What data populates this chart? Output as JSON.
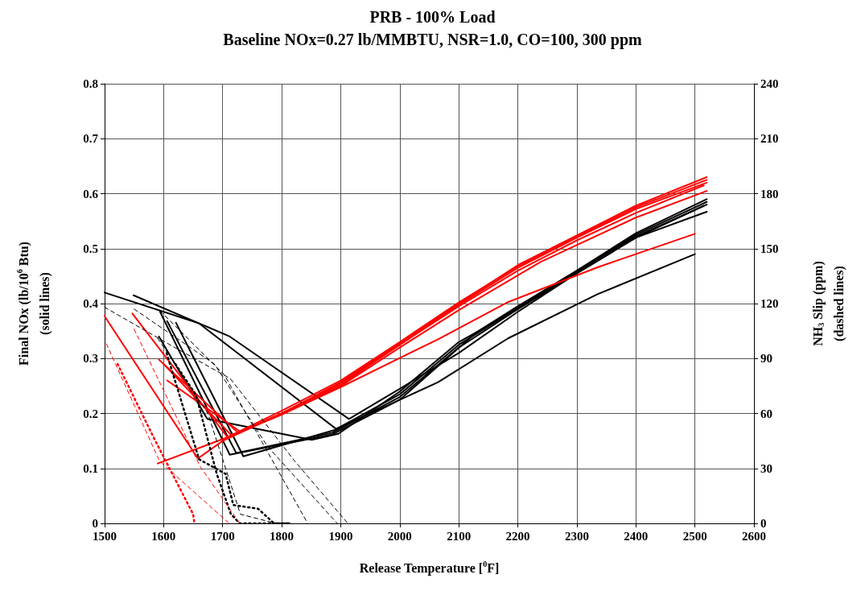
{
  "chart_data": {
    "type": "line",
    "title": "PRB - 100% Load",
    "subtitle": "Baseline NOx=0.27 lb/MMBTU, NSR=1.0, CO=100, 300 ppm",
    "xlabel": "Release Temperature [$^{0}$F]",
    "ylabel": "Final NOx (lb/10$^{6}$ Btu)\n(solid lines)",
    "y2label": "NH$_{3}$ Slip (ppm)\n(dashed lines)",
    "xlim": [
      1500,
      2600
    ],
    "xticks": [
      1500,
      1600,
      1700,
      1800,
      1900,
      2000,
      2100,
      2200,
      2300,
      2400,
      2500,
      2600
    ],
    "ylim": [
      0,
      0.8
    ],
    "yticks": [
      0,
      0.1,
      0.2,
      0.3,
      0.4,
      0.5,
      0.6,
      0.7,
      0.8
    ],
    "y2lim": [
      0,
      240
    ],
    "y2ticks": [
      0,
      30,
      60,
      90,
      120,
      150,
      180,
      210,
      240
    ],
    "grid": true,
    "marker": "none",
    "line_style": "solid",
    "series": [
      {
        "color": "#000000",
        "x": [
          1500,
          1660,
          1712,
          1914,
          2000,
          2100,
          2200,
          2300,
          2400,
          2520
        ],
        "values": [
          0.42,
          0.364,
          0.34,
          0.19,
          0.245,
          0.31,
          0.385,
          0.455,
          0.52,
          0.567
        ]
      },
      {
        "color": "#000000",
        "x": [
          1549,
          1660,
          1892,
          1960,
          2065,
          2184,
          2335,
          2500
        ],
        "values": [
          0.415,
          0.364,
          0.172,
          0.205,
          0.257,
          0.337,
          0.417,
          0.49
        ]
      },
      {
        "color": "#000000",
        "x": [
          1594,
          1712,
          1886,
          2000,
          2129,
          2200,
          2300,
          2400,
          2520
        ],
        "values": [
          0.385,
          0.125,
          0.162,
          0.225,
          0.347,
          0.395,
          0.46,
          0.528,
          0.59
        ]
      },
      {
        "color": "#000000",
        "x": [
          1606,
          1723,
          1886,
          2000,
          2100,
          2200,
          2300,
          2400,
          2520
        ],
        "values": [
          0.368,
          0.128,
          0.165,
          0.23,
          0.32,
          0.39,
          0.458,
          0.525,
          0.585
        ]
      },
      {
        "color": "#000000",
        "x": [
          1621,
          1735,
          1890,
          2000,
          2100,
          2200,
          2300,
          2400,
          2520
        ],
        "values": [
          0.365,
          0.122,
          0.17,
          0.235,
          0.325,
          0.392,
          0.46,
          0.522,
          0.58
        ]
      },
      {
        "color": "#000000",
        "x": [
          1592,
          1674,
          1851,
          1896,
          2000,
          2100,
          2200,
          2300,
          2400,
          2515
        ],
        "values": [
          0.34,
          0.19,
          0.152,
          0.163,
          0.24,
          0.33,
          0.39,
          0.455,
          0.52,
          0.578
        ]
      },
      {
        "color": "#ff0000",
        "x": [
          1500,
          1658,
          1700,
          1800,
          1900,
          2000,
          2100,
          2200,
          2300,
          2400,
          2520
        ],
        "values": [
          0.377,
          0.118,
          0.15,
          0.2,
          0.257,
          0.328,
          0.4,
          0.47,
          0.524,
          0.578,
          0.63
        ]
      },
      {
        "color": "#ff0000",
        "x": [
          1547,
          1708,
          1800,
          1900,
          2000,
          2100,
          2200,
          2300,
          2400,
          2520
        ],
        "values": [
          0.382,
          0.157,
          0.205,
          0.26,
          0.33,
          0.402,
          0.468,
          0.522,
          0.575,
          0.625
        ]
      },
      {
        "color": "#ff0000",
        "x": [
          1592,
          1726,
          1800,
          1900,
          2000,
          2100,
          2200,
          2300,
          2400,
          2520
        ],
        "values": [
          0.298,
          0.165,
          0.2,
          0.255,
          0.325,
          0.398,
          0.465,
          0.52,
          0.572,
          0.62
        ]
      },
      {
        "color": "#ff0000",
        "x": [
          1599,
          1715,
          1800,
          1900,
          2000,
          2100,
          2239,
          2399,
          2520
        ],
        "values": [
          0.291,
          0.16,
          0.198,
          0.25,
          0.32,
          0.388,
          0.476,
          0.556,
          0.605
        ]
      },
      {
        "color": "#ff0000",
        "x": [
          1606,
          1731,
          1800,
          1900,
          2000,
          2100,
          2200,
          2300,
          2400,
          2515
        ],
        "values": [
          0.26,
          0.166,
          0.2,
          0.252,
          0.325,
          0.395,
          0.46,
          0.515,
          0.565,
          0.615
        ]
      },
      {
        "color": "#ff0000",
        "x": [
          1590,
          1704,
          1800,
          1900,
          2000,
          2065,
          2184,
          2335,
          2500
        ],
        "values": [
          0.109,
          0.155,
          0.198,
          0.248,
          0.301,
          0.335,
          0.403,
          0.466,
          0.527
        ]
      },
      {
        "color": "#000000",
        "axis": "y2",
        "line_style": "dashed",
        "x": [
          1500,
          1608,
          1713,
          1822,
          1912
        ],
        "values": [
          118,
          98,
          79,
          34,
          0
        ]
      },
      {
        "color": "#000000",
        "axis": "y2",
        "line_style": "dashed",
        "x": [
          1550,
          1686,
          1776,
          1894
        ],
        "values": [
          117,
          87,
          42,
          0
        ]
      },
      {
        "color": "#000000",
        "axis": "y2",
        "line_style": "dashed",
        "x": [
          1594,
          1703,
          1844
        ],
        "values": [
          116,
          81,
          0
        ]
      },
      {
        "color": "#000000",
        "axis": "y2",
        "line_style": "dashed",
        "x": [
          1590,
          1675,
          1730,
          1790
        ],
        "values": [
          101,
          60,
          5,
          0
        ]
      },
      {
        "color": "#000000",
        "axis": "y2",
        "line_style": "dotted",
        "x": [
          1605,
          1660,
          1705,
          1718,
          1760,
          1787,
          1810
        ],
        "values": [
          93,
          35,
          27,
          10,
          8,
          0,
          0
        ]
      },
      {
        "color": "#000000",
        "axis": "y2",
        "line_style": "dotted",
        "x": [
          1620,
          1655,
          1690,
          1714,
          1729,
          1814
        ],
        "values": [
          87,
          70,
          27,
          5,
          0,
          0
        ]
      },
      {
        "color": "#ff0000",
        "axis": "y2",
        "line_style": "dashed",
        "x": [
          1503,
          1593,
          1711
        ],
        "values": [
          98,
          34,
          0
        ]
      },
      {
        "color": "#ff0000",
        "axis": "y2",
        "line_style": "dashed",
        "x": [
          1550,
          1662,
          1729
        ],
        "values": [
          106,
          31,
          0
        ]
      },
      {
        "color": "#ff0000",
        "axis": "y2",
        "line_style": "dotted",
        "x": [
          1522,
          1586,
          1650,
          1652
        ],
        "values": [
          87,
          45,
          5,
          0
        ]
      }
    ]
  }
}
